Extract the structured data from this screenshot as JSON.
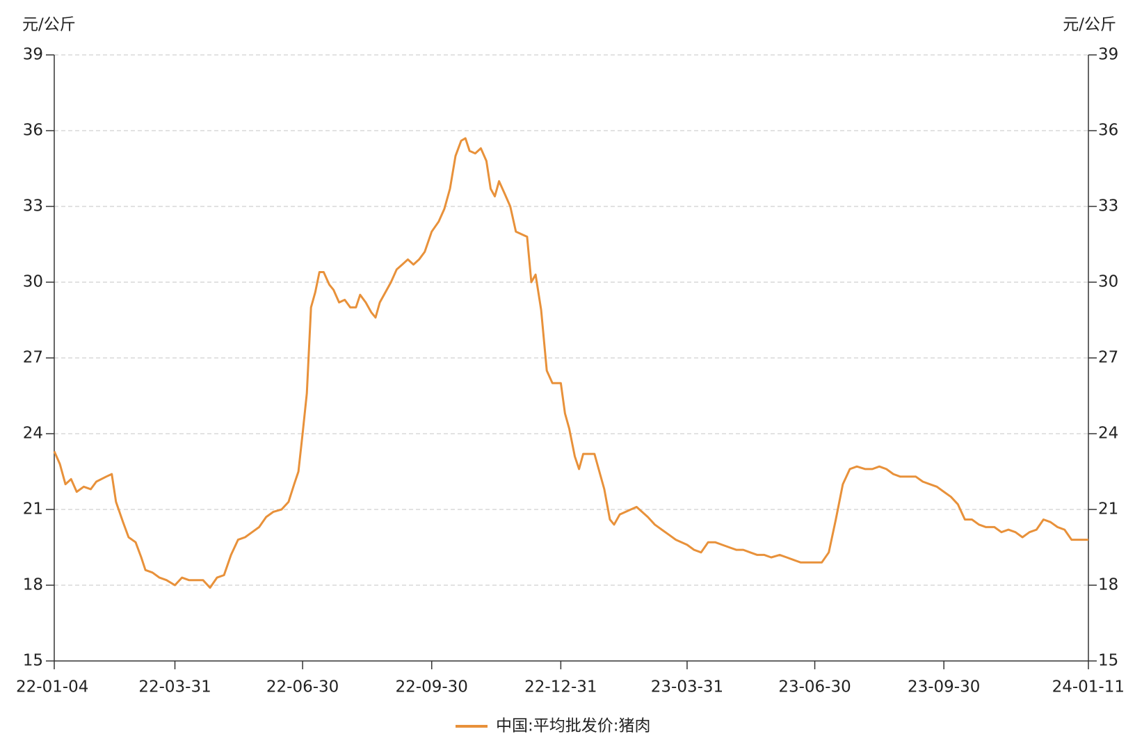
{
  "chart_data": {
    "type": "line",
    "y_label": "元/公斤",
    "y2_label": "元/公斤",
    "x": [
      "22-01-04",
      "22-01-08",
      "22-01-12",
      "22-01-16",
      "22-01-20",
      "22-01-25",
      "22-01-30",
      "22-02-03",
      "22-02-10",
      "22-02-14",
      "22-02-17",
      "22-02-22",
      "22-02-26",
      "22-03-03",
      "22-03-07",
      "22-03-10",
      "22-03-15",
      "22-03-20",
      "22-03-25",
      "22-03-31",
      "22-04-05",
      "22-04-10",
      "22-04-15",
      "22-04-20",
      "22-04-25",
      "22-04-30",
      "22-05-05",
      "22-05-10",
      "22-05-15",
      "22-05-20",
      "22-05-25",
      "22-05-30",
      "22-06-04",
      "22-06-09",
      "22-06-15",
      "22-06-20",
      "22-06-24",
      "22-06-27",
      "22-06-30",
      "22-07-03",
      "22-07-06",
      "22-07-09",
      "22-07-12",
      "22-07-15",
      "22-07-19",
      "22-07-22",
      "22-07-26",
      "22-07-30",
      "22-08-03",
      "22-08-07",
      "22-08-10",
      "22-08-14",
      "22-08-18",
      "22-08-21",
      "22-08-24",
      "22-08-28",
      "22-09-01",
      "22-09-05",
      "22-09-09",
      "22-09-13",
      "22-09-17",
      "22-09-21",
      "22-09-25",
      "22-09-30",
      "22-10-05",
      "22-10-09",
      "22-10-13",
      "22-10-17",
      "22-10-21",
      "22-10-24",
      "22-10-27",
      "22-10-31",
      "22-11-04",
      "22-11-08",
      "22-11-11",
      "22-11-14",
      "22-11-17",
      "22-11-21",
      "22-11-25",
      "22-11-29",
      "22-12-03",
      "22-12-07",
      "22-12-10",
      "22-12-13",
      "22-12-17",
      "22-12-21",
      "22-12-25",
      "22-12-31",
      "23-01-03",
      "23-01-06",
      "23-01-10",
      "23-01-13",
      "23-01-16",
      "23-01-20",
      "23-01-24",
      "23-01-27",
      "23-01-31",
      "23-02-04",
      "23-02-07",
      "23-02-11",
      "23-02-15",
      "23-02-19",
      "23-02-23",
      "23-02-27",
      "23-03-03",
      "23-03-08",
      "23-03-13",
      "23-03-18",
      "23-03-23",
      "23-03-31",
      "23-04-05",
      "23-04-10",
      "23-04-15",
      "23-04-20",
      "23-04-25",
      "23-04-30",
      "23-05-05",
      "23-05-10",
      "23-05-15",
      "23-05-20",
      "23-05-25",
      "23-05-30",
      "23-06-05",
      "23-06-10",
      "23-06-15",
      "23-06-20",
      "23-06-25",
      "23-06-30",
      "23-07-05",
      "23-07-10",
      "23-07-15",
      "23-07-20",
      "23-07-25",
      "23-07-30",
      "23-08-05",
      "23-08-10",
      "23-08-15",
      "23-08-20",
      "23-08-25",
      "23-08-30",
      "23-09-05",
      "23-09-10",
      "23-09-15",
      "23-09-20",
      "23-09-25",
      "23-09-30",
      "23-10-05",
      "23-10-10",
      "23-10-15",
      "23-10-20",
      "23-10-25",
      "23-10-30",
      "23-11-05",
      "23-11-10",
      "23-11-15",
      "23-11-20",
      "23-11-25",
      "23-11-30",
      "23-12-05",
      "23-12-10",
      "23-12-15",
      "23-12-20",
      "23-12-25",
      "23-12-30",
      "24-01-05",
      "24-01-11"
    ],
    "series": [
      {
        "name": "中国:平均批发价:猪肉",
        "color": "#e8913a",
        "values": [
          23.3,
          22.8,
          22.0,
          22.2,
          21.7,
          21.9,
          21.8,
          22.1,
          22.3,
          22.4,
          21.3,
          20.5,
          19.9,
          19.7,
          19.1,
          18.6,
          18.5,
          18.3,
          18.2,
          18.0,
          18.3,
          18.2,
          18.2,
          18.2,
          17.9,
          18.3,
          18.4,
          19.2,
          19.8,
          19.9,
          20.1,
          20.3,
          20.7,
          20.9,
          21.0,
          21.3,
          22.0,
          22.5,
          24.0,
          25.6,
          29.0,
          29.6,
          30.4,
          30.4,
          29.9,
          29.7,
          29.2,
          29.3,
          29.0,
          29.0,
          29.5,
          29.2,
          28.8,
          28.6,
          29.2,
          29.6,
          30.0,
          30.5,
          30.7,
          30.9,
          30.7,
          30.9,
          31.2,
          32.0,
          32.4,
          32.9,
          33.7,
          35.0,
          35.6,
          35.7,
          35.2,
          35.1,
          35.3,
          34.8,
          33.7,
          33.4,
          34.0,
          33.5,
          33.0,
          32.0,
          31.9,
          31.8,
          30.0,
          30.3,
          28.9,
          26.5,
          26.0,
          26.0,
          24.8,
          24.2,
          23.1,
          22.6,
          23.2,
          23.2,
          23.2,
          22.6,
          21.8,
          20.6,
          20.4,
          20.8,
          20.9,
          21.0,
          21.1,
          20.9,
          20.7,
          20.4,
          20.2,
          20.0,
          19.8,
          19.6,
          19.4,
          19.3,
          19.7,
          19.7,
          19.6,
          19.5,
          19.4,
          19.4,
          19.3,
          19.2,
          19.2,
          19.1,
          19.2,
          19.1,
          19.0,
          18.9,
          18.9,
          18.9,
          18.9,
          19.3,
          20.6,
          22.0,
          22.6,
          22.7,
          22.6,
          22.6,
          22.7,
          22.6,
          22.4,
          22.3,
          22.3,
          22.3,
          22.1,
          22.0,
          21.9,
          21.7,
          21.5,
          21.2,
          20.6,
          20.6,
          20.4,
          20.3,
          20.3,
          20.1,
          20.2,
          20.1,
          19.9,
          20.1,
          20.2,
          20.6,
          20.5,
          20.3,
          20.2,
          19.8,
          19.8,
          19.8
        ]
      }
    ],
    "xlim": [
      "22-01-04",
      "24-01-11"
    ],
    "xticks": [
      "22-01-04",
      "22-03-31",
      "22-06-30",
      "22-09-30",
      "22-12-31",
      "23-03-31",
      "23-06-30",
      "23-09-30",
      "24-01-11"
    ],
    "ylim": [
      15,
      39
    ],
    "yticks": [
      15,
      18,
      21,
      24,
      27,
      30,
      33,
      36,
      39
    ],
    "y2lim": [
      15,
      39
    ],
    "y2ticks": [
      15,
      18,
      21,
      24,
      27,
      30,
      33,
      36,
      39
    ],
    "grid": true
  }
}
